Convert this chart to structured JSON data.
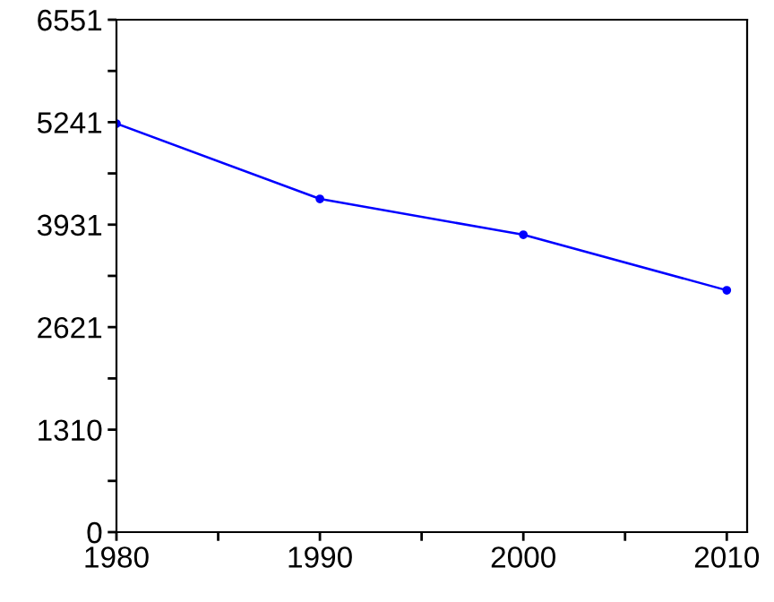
{
  "chart_data": {
    "type": "line",
    "x": [
      1980,
      1990,
      2000,
      2010
    ],
    "series": [
      {
        "color": "#0000ff",
        "values": [
          5222,
          4260,
          3802,
          3092
        ]
      }
    ],
    "xlim": [
      1980,
      2011
    ],
    "ylim": [
      0,
      6551
    ],
    "xticks": [
      1980,
      {
        "value": 1985,
        "label": null
      },
      1990,
      {
        "value": 1995,
        "label": null
      },
      2000,
      {
        "value": 2005,
        "label": null
      },
      2010
    ],
    "yticks": [
      0,
      {
        "value": 655,
        "label": null
      },
      1310,
      {
        "value": 1965,
        "label": null
      },
      2621,
      {
        "value": 3276,
        "label": null
      },
      3931,
      {
        "value": 4586,
        "label": null
      },
      5241,
      {
        "value": 5896,
        "label": null
      },
      6551
    ],
    "marker": "circle",
    "line_style": "solid",
    "grid": false,
    "legend": false
  }
}
